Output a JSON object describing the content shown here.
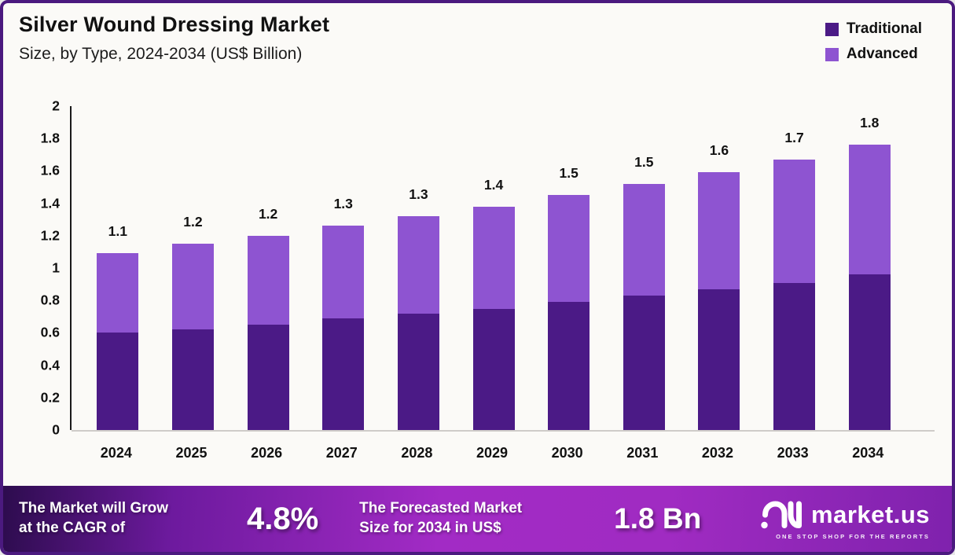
{
  "header": {
    "title": "Silver Wound Dressing Market",
    "subtitle": "Size, by Type, 2024-2034 (US$ Billion)"
  },
  "legend": [
    {
      "label": "Traditional",
      "color": "#4b1a86"
    },
    {
      "label": "Advanced",
      "color": "#8e54d1"
    }
  ],
  "chart_data": {
    "type": "bar",
    "stacked": true,
    "title": "Silver Wound Dressing Market Size, by Type, 2024-2034 (US$ Billion)",
    "categories": [
      "2024",
      "2025",
      "2026",
      "2027",
      "2028",
      "2029",
      "2030",
      "2031",
      "2032",
      "2033",
      "2034"
    ],
    "series": [
      {
        "name": "Traditional",
        "color": "#4b1a86",
        "values": [
          0.6,
          0.62,
          0.65,
          0.69,
          0.72,
          0.75,
          0.79,
          0.83,
          0.87,
          0.91,
          0.96
        ]
      },
      {
        "name": "Advanced",
        "color": "#8e54d1",
        "values": [
          0.49,
          0.53,
          0.55,
          0.57,
          0.6,
          0.63,
          0.66,
          0.69,
          0.72,
          0.76,
          0.8
        ]
      }
    ],
    "total_labels": [
      "1.1",
      "1.2",
      "1.2",
      "1.3",
      "1.3",
      "1.4",
      "1.5",
      "1.5",
      "1.6",
      "1.7",
      "1.8"
    ],
    "y_ticks": [
      "2",
      "1.8",
      "1.6",
      "1.4",
      "1.2",
      "1",
      "0.8",
      "0.6",
      "0.4",
      "0.2",
      "0"
    ],
    "ylim": [
      0,
      2
    ],
    "xlabel": "",
    "ylabel": "",
    "grid": false,
    "legend_position": "top-right"
  },
  "banner": {
    "cagr_label_line1": "The Market will Grow",
    "cagr_label_line2": "at the CAGR of",
    "cagr_value": "4.8%",
    "forecast_label_line1": "The Forecasted Market",
    "forecast_label_line2": "Size for 2034 in US$",
    "forecast_value": "1.8 Bn",
    "logo_text": "market.us",
    "logo_tagline": "ONE STOP SHOP FOR THE REPORTS"
  },
  "colors": {
    "frame_border": "#4b1a7f",
    "background": "#fbfaf7",
    "traditional": "#4b1a86",
    "advanced": "#8e54d1",
    "banner_gradient_start": "#2d0c4e",
    "banner_gradient_mid": "#a22bc5",
    "banner_gradient_end": "#7f22ad"
  }
}
